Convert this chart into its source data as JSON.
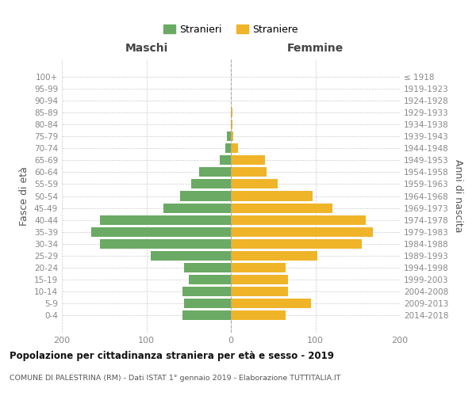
{
  "age_groups": [
    "100+",
    "95-99",
    "90-94",
    "85-89",
    "80-84",
    "75-79",
    "70-74",
    "65-69",
    "60-64",
    "55-59",
    "50-54",
    "45-49",
    "40-44",
    "35-39",
    "30-34",
    "25-29",
    "20-24",
    "15-19",
    "10-14",
    "5-9",
    "0-4"
  ],
  "birth_years": [
    "≤ 1918",
    "1919-1923",
    "1924-1928",
    "1929-1933",
    "1934-1938",
    "1939-1943",
    "1944-1948",
    "1949-1953",
    "1954-1958",
    "1959-1963",
    "1964-1968",
    "1969-1973",
    "1974-1978",
    "1979-1983",
    "1984-1988",
    "1989-1993",
    "1994-1998",
    "1999-2003",
    "2004-2008",
    "2009-2013",
    "2014-2018"
  ],
  "maschi": [
    0,
    0,
    0,
    0,
    0,
    5,
    7,
    13,
    38,
    47,
    60,
    80,
    155,
    165,
    155,
    95,
    55,
    50,
    57,
    55,
    57
  ],
  "femmine": [
    0,
    0,
    0,
    2,
    2,
    3,
    8,
    40,
    42,
    55,
    97,
    120,
    160,
    168,
    155,
    102,
    65,
    68,
    68,
    95,
    65
  ],
  "maschi_color": "#6aaa64",
  "femmine_color": "#f0b429",
  "title": "Popolazione per cittadinanza straniera per età e sesso - 2019",
  "subtitle": "COMUNE DI PALESTRINA (RM) - Dati ISTAT 1° gennaio 2019 - Elaborazione TUTTITALIA.IT",
  "xlabel_left": "Maschi",
  "xlabel_right": "Femmine",
  "ylabel_left": "Fasce di età",
  "ylabel_right": "Anni di nascita",
  "xlim": 200,
  "legend_stranieri": "Stranieri",
  "legend_straniere": "Straniere",
  "background_color": "#ffffff",
  "grid_color": "#cccccc",
  "bar_height": 0.8
}
